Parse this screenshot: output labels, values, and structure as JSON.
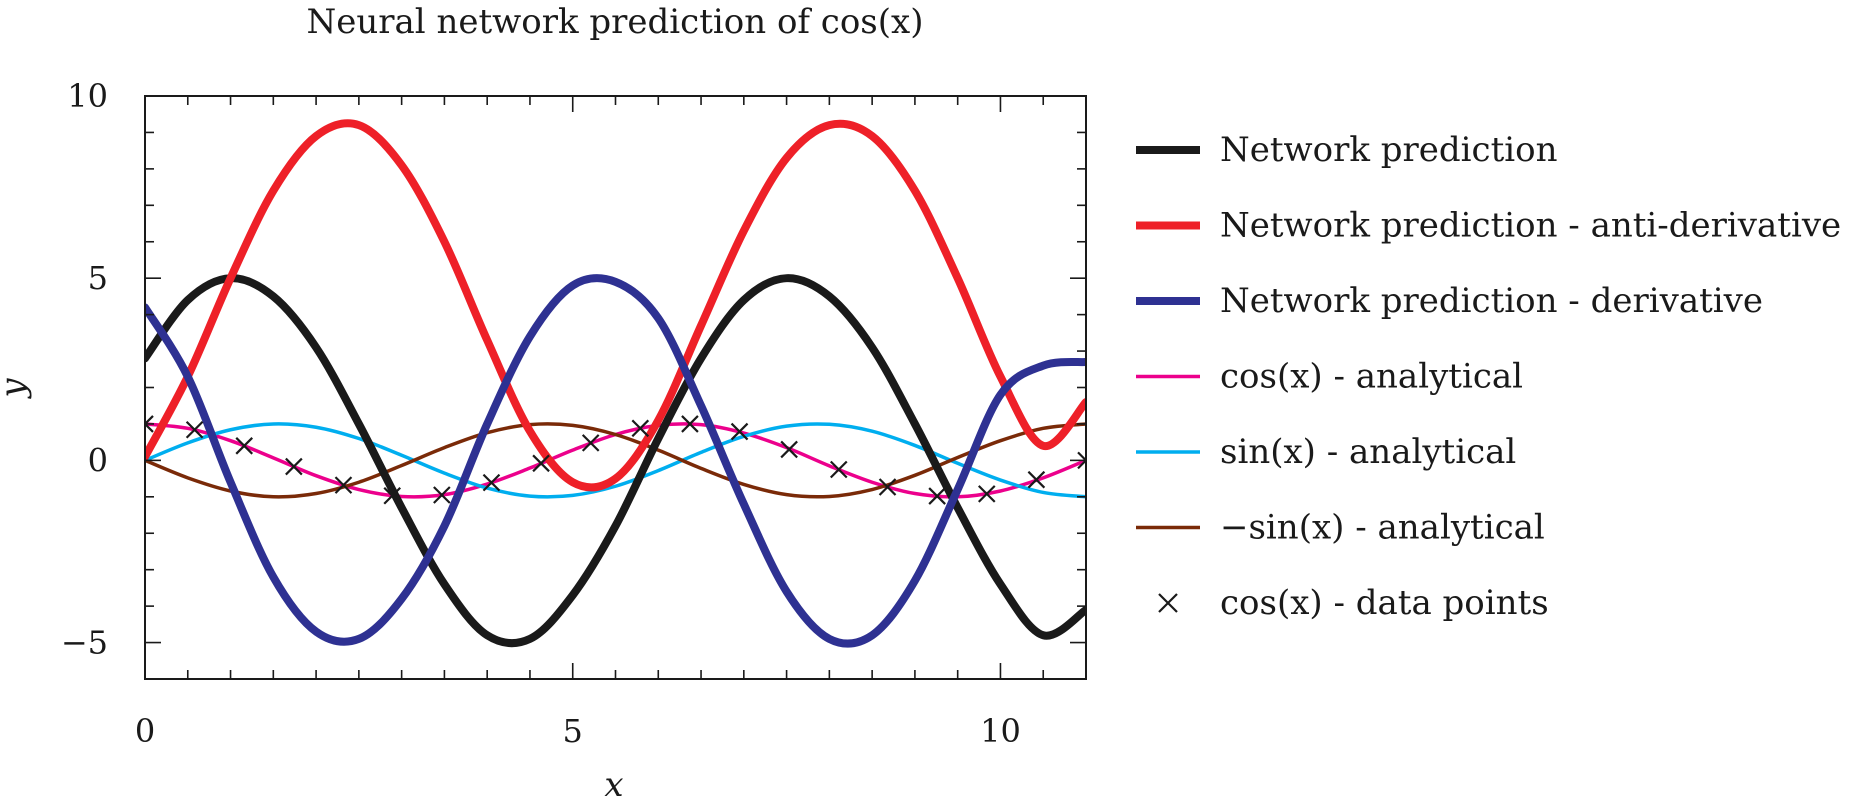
{
  "chart_data": {
    "type": "line",
    "title": "Neural network prediction of cos(x)",
    "xlabel": "x",
    "ylabel": "y",
    "xlim": [
      0,
      11
    ],
    "ylim": [
      -6,
      10
    ],
    "xticks": [
      0,
      5,
      10
    ],
    "yticks": [
      -5,
      0,
      5,
      10
    ],
    "xtick_labels": [
      "0",
      "5",
      "10"
    ],
    "ytick_labels": [
      "−5",
      "0",
      "5",
      "10"
    ],
    "grid": false,
    "legend_position": "right, outside plot",
    "series": [
      {
        "name": "Network prediction",
        "color": "#1a1a1a",
        "style": "thick-line",
        "x": [
          0,
          0.5,
          1,
          1.5,
          2,
          2.5,
          3,
          3.5,
          4,
          4.5,
          5,
          5.5,
          6,
          6.5,
          7,
          7.5,
          8,
          8.5,
          9,
          9.5,
          10,
          10.5,
          11
        ],
        "y": [
          2.8,
          4.4,
          5.0,
          4.5,
          3.1,
          1.0,
          -1.3,
          -3.4,
          -4.8,
          -4.9,
          -3.7,
          -1.8,
          0.6,
          2.8,
          4.4,
          5.0,
          4.5,
          3.1,
          1.0,
          -1.3,
          -3.4,
          -4.8,
          -4.1
        ]
      },
      {
        "name": "Network prediction - anti-derivative",
        "color": "#ee2028",
        "style": "thick-line",
        "x": [
          0,
          0.5,
          1,
          1.5,
          2,
          2.5,
          3,
          3.5,
          4,
          4.5,
          5,
          5.5,
          6,
          6.5,
          7,
          7.5,
          8,
          8.5,
          9,
          9.5,
          10,
          10.5,
          11
        ],
        "y": [
          0.1,
          2.3,
          5.0,
          7.4,
          8.9,
          9.2,
          8.1,
          6.0,
          3.3,
          0.8,
          -0.6,
          -0.5,
          1.1,
          3.7,
          6.3,
          8.3,
          9.2,
          8.9,
          7.4,
          5.0,
          2.3,
          0.4,
          1.6
        ]
      },
      {
        "name": "Network prediction - derivative",
        "color": "#2e3192",
        "style": "thick-line",
        "x": [
          0,
          0.5,
          1,
          1.5,
          2,
          2.5,
          3,
          3.5,
          4,
          4.5,
          5,
          5.5,
          6,
          6.5,
          7,
          7.5,
          8,
          8.5,
          9,
          9.5,
          10,
          10.5,
          11
        ],
        "y": [
          4.2,
          2.3,
          -0.6,
          -3.2,
          -4.7,
          -4.9,
          -3.8,
          -1.8,
          1.0,
          3.4,
          4.8,
          4.9,
          3.9,
          1.5,
          -1.2,
          -3.6,
          -4.9,
          -4.8,
          -3.3,
          -0.8,
          1.8,
          2.6,
          2.7
        ]
      },
      {
        "name": "cos(x) - analytical",
        "color": "#ec008c",
        "style": "line",
        "x": [
          0,
          0.5,
          1,
          1.5,
          2,
          2.5,
          3,
          3.5,
          4,
          4.5,
          5,
          5.5,
          6,
          6.5,
          7,
          7.5,
          8,
          8.5,
          9,
          9.5,
          10,
          10.5,
          11
        ],
        "y": [
          1.0,
          0.88,
          0.54,
          0.07,
          -0.42,
          -0.8,
          -0.99,
          -0.94,
          -0.65,
          -0.21,
          0.28,
          0.71,
          0.96,
          0.98,
          0.75,
          0.35,
          -0.15,
          -0.6,
          -0.91,
          -1.0,
          -0.84,
          -0.48,
          0.0
        ]
      },
      {
        "name": "sin(x) - analytical",
        "color": "#00aeef",
        "style": "line",
        "x": [
          0,
          0.5,
          1,
          1.5,
          2,
          2.5,
          3,
          3.5,
          4,
          4.5,
          5,
          5.5,
          6,
          6.5,
          7,
          7.5,
          8,
          8.5,
          9,
          9.5,
          10,
          10.5,
          11
        ],
        "y": [
          0.0,
          0.48,
          0.84,
          1.0,
          0.91,
          0.6,
          0.14,
          -0.35,
          -0.76,
          -0.98,
          -0.96,
          -0.71,
          -0.28,
          0.22,
          0.66,
          0.94,
          0.99,
          0.8,
          0.41,
          -0.08,
          -0.54,
          -0.88,
          -1.0
        ]
      },
      {
        "name": "−sin(x) - analytical",
        "color": "#7a2a08",
        "style": "line",
        "x": [
          0,
          0.5,
          1,
          1.5,
          2,
          2.5,
          3,
          3.5,
          4,
          4.5,
          5,
          5.5,
          6,
          6.5,
          7,
          7.5,
          8,
          8.5,
          9,
          9.5,
          10,
          10.5,
          11
        ],
        "y": [
          0.0,
          -0.48,
          -0.84,
          -1.0,
          -0.91,
          -0.6,
          -0.14,
          0.35,
          0.76,
          0.98,
          0.96,
          0.71,
          0.28,
          -0.22,
          -0.66,
          -0.94,
          -0.99,
          -0.8,
          -0.41,
          0.08,
          0.54,
          0.88,
          1.0
        ]
      },
      {
        "name": "cos(x) - data points",
        "color": "#1a1a1a",
        "style": "markers-x",
        "x": [
          0,
          0.58,
          1.16,
          1.74,
          2.32,
          2.89,
          3.47,
          4.05,
          4.63,
          5.21,
          5.79,
          6.37,
          6.95,
          7.53,
          8.11,
          8.68,
          9.26,
          9.84,
          10.42,
          11.0
        ],
        "y": [
          1.0,
          0.84,
          0.4,
          -0.17,
          -0.68,
          -0.97,
          -0.95,
          -0.61,
          -0.08,
          0.48,
          0.88,
          1.0,
          0.79,
          0.3,
          -0.25,
          -0.73,
          -0.98,
          -0.92,
          -0.53,
          0.0
        ]
      }
    ]
  }
}
